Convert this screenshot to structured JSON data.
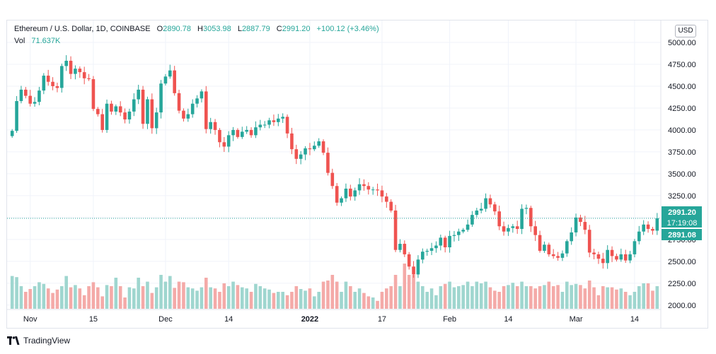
{
  "legend": {
    "symbol": "Ethereum / U.S. Dollar, 1D, COINBASE",
    "o_label": "O",
    "o_value": "2890.78",
    "h_label": "H",
    "h_value": "3053.98",
    "l_label": "L",
    "l_value": "2887.79",
    "c_label": "C",
    "c_value": "2991.20",
    "change": "+100.12 (+3.46%)",
    "vol_label": "Vol",
    "vol_value": "71.637K"
  },
  "currency_button": "USD",
  "price_tags": {
    "last": "2991.20",
    "countdown": "17:19:08",
    "open": "2891.08"
  },
  "footer": {
    "brand": "TradingView"
  },
  "colors": {
    "up": "#26a69a",
    "down": "#ef5350",
    "up_vol": "#9fd6cf",
    "down_vol": "#f4aaa8",
    "grid": "#f0f3fa"
  },
  "chart_data": {
    "type": "candlestick",
    "y_range": [
      1950,
      5250
    ],
    "y_ticks": [
      2000,
      2250,
      2500,
      2750,
      3000,
      3250,
      3500,
      3750,
      4000,
      4250,
      4500,
      4750,
      5000
    ],
    "y_tick_labels": [
      "2000.00",
      "2250.00",
      "2500.00",
      "2750.00",
      "3000.00",
      "3250.00",
      "3500.00",
      "3750.00",
      "4000.00",
      "4250.00",
      "4500.00",
      "4750.00",
      "5000.00"
    ],
    "x_labels": [
      {
        "label": "Nov",
        "index": 4
      },
      {
        "label": "15",
        "index": 18
      },
      {
        "label": "Dec",
        "index": 34
      },
      {
        "label": "14",
        "index": 48
      },
      {
        "label": "2022",
        "index": 66
      },
      {
        "label": "17",
        "index": 82
      },
      {
        "label": "Feb",
        "index": 97
      },
      {
        "label": "14",
        "index": 110
      },
      {
        "label": "Mar",
        "index": 125
      },
      {
        "label": "14",
        "index": 138
      }
    ],
    "current_price": 2991.2,
    "close": [
      3990,
      4330,
      4460,
      4390,
      4300,
      4320,
      4450,
      4620,
      4550,
      4500,
      4480,
      4730,
      4790,
      4640,
      4700,
      4660,
      4590,
      4580,
      4240,
      4180,
      4000,
      4300,
      4210,
      4270,
      4200,
      4120,
      4210,
      4350,
      4460,
      4070,
      4350,
      4020,
      4200,
      4530,
      4610,
      4680,
      4420,
      4220,
      4130,
      4180,
      4300,
      4360,
      4440,
      4010,
      4090,
      4000,
      3860,
      3810,
      3940,
      4000,
      3920,
      3980,
      4000,
      3940,
      4030,
      4060,
      4060,
      4110,
      4090,
      4130,
      4150,
      3960,
      3780,
      3670,
      3720,
      3790,
      3780,
      3820,
      3870,
      3740,
      3510,
      3360,
      3170,
      3220,
      3330,
      3240,
      3310,
      3380,
      3360,
      3320,
      3320,
      3310,
      3240,
      3180,
      3080,
      2630,
      2700,
      2580,
      2440,
      2350,
      2520,
      2610,
      2620,
      2650,
      2680,
      2770,
      2660,
      2790,
      2800,
      2840,
      2860,
      2920,
      3030,
      3080,
      3100,
      3220,
      3150,
      3070,
      2900,
      2840,
      2880,
      2900,
      2870,
      3100,
      3110,
      2900,
      2800,
      2620,
      2690,
      2580,
      2560,
      2540,
      2590,
      2730,
      2830,
      3000,
      2950,
      2860,
      2600,
      2580,
      2530,
      2480,
      2630,
      2560,
      2520,
      2580,
      2510,
      2580,
      2730,
      2840,
      2920,
      2870,
      2850,
      2991
    ]
  },
  "volume_data": {
    "values": [
      58,
      56,
      40,
      30,
      35,
      40,
      47,
      44,
      36,
      28,
      34,
      40,
      58,
      38,
      42,
      36,
      24,
      40,
      47,
      38,
      22,
      42,
      40,
      55,
      40,
      20,
      38,
      36,
      55,
      40,
      48,
      28,
      38,
      60,
      48,
      58,
      37,
      48,
      47,
      38,
      36,
      32,
      38,
      55,
      38,
      36,
      30,
      45,
      40,
      48,
      42,
      38,
      36,
      30,
      44,
      40,
      36,
      34,
      28,
      30,
      30,
      24,
      30,
      40,
      35,
      32,
      36,
      22,
      30,
      48,
      50,
      60,
      48,
      30,
      48,
      40,
      30,
      36,
      28,
      22,
      20,
      14,
      30,
      36,
      40,
      60,
      40,
      80,
      60,
      60,
      48,
      40,
      30,
      36,
      24,
      40,
      44,
      48,
      38,
      40,
      42,
      48,
      40,
      48,
      45,
      48,
      38,
      32,
      30,
      40,
      42,
      46,
      40,
      48,
      40,
      40,
      36,
      40,
      42,
      48,
      40,
      42,
      30,
      48,
      42,
      44,
      42,
      36,
      50,
      38,
      24,
      40,
      38,
      38,
      34,
      36,
      30,
      24,
      30,
      40,
      45,
      45,
      32,
      40
    ],
    "max": 100
  }
}
